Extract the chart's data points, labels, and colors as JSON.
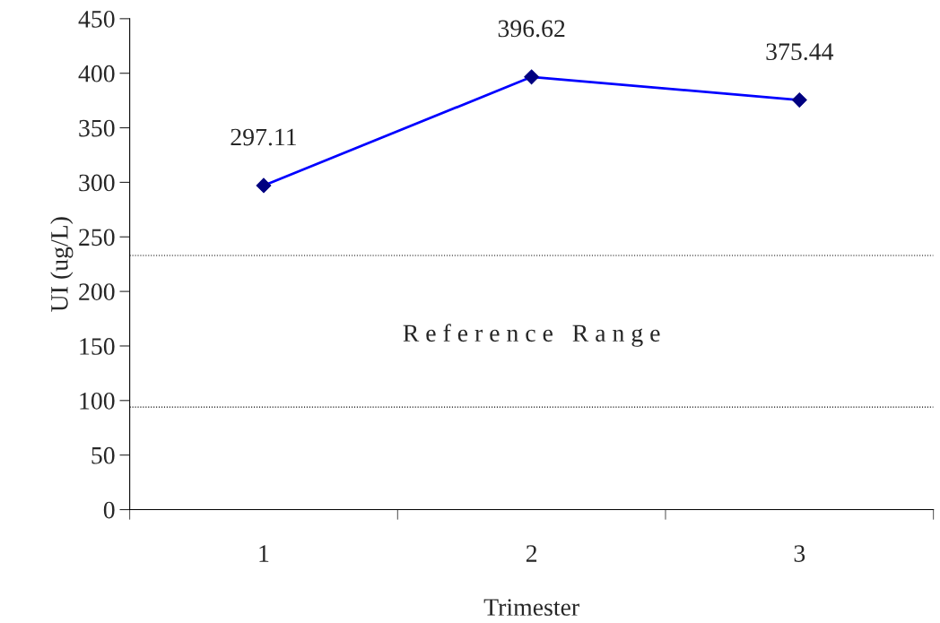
{
  "chart_data": {
    "type": "line",
    "xlabel": "Trimester",
    "ylabel": "UI (ug/L)",
    "categories": [
      "1",
      "2",
      "3"
    ],
    "series": [
      {
        "color": "#0000ff",
        "values": [
          297.11,
          396.62,
          375.44
        ]
      }
    ],
    "data_labels": true,
    "marker": "diamond",
    "line_style": "solid",
    "grid": false,
    "legend": false,
    "ylim": [
      0,
      450
    ],
    "yticks": [
      0,
      50,
      100,
      150,
      200,
      250,
      300,
      350,
      400,
      450
    ],
    "ref_lines": [
      {
        "axis": "y",
        "value": 94,
        "line_style": "dotted",
        "color": "#000000"
      },
      {
        "axis": "y",
        "value": 233,
        "line_style": "dotted",
        "color": "#000000"
      }
    ],
    "annotations": [
      "R e f e r e n c e   R a n g e"
    ]
  }
}
